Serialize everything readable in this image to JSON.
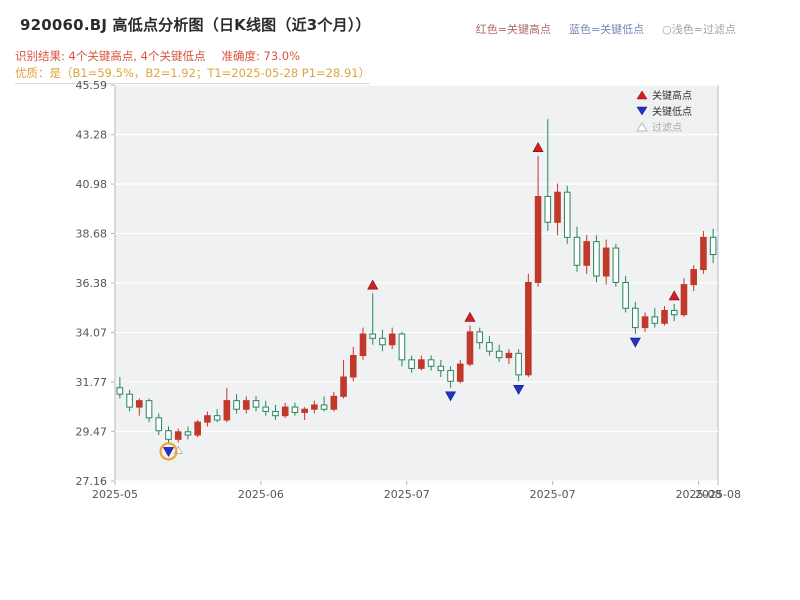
{
  "header": {
    "title": "920060.BJ 高低点分析图（日K线图（近3个月））",
    "legend_high": "红色=关键高点",
    "legend_low": "蓝色=关键低点",
    "legend_filter": "○浅色=过滤点",
    "result_text": "识别结果: 4个关键高点, 4个关键低点",
    "accuracy_text": "准确度: 73.0%",
    "quality_text": "优质：是（B1=59.5%，B2=1.92；T1=2025-05-28 P1=28.91）"
  },
  "chart_data": {
    "type": "candlestick",
    "title": "920060.BJ 高低点分析图（日K线图（近3个月））",
    "xlabel": "",
    "ylabel": "",
    "grid": true,
    "legend_position": "upper right",
    "ylim": [
      27.16,
      45.59
    ],
    "y_ticks": [
      "45.59",
      "43.28",
      "40.98",
      "38.68",
      "36.38",
      "34.07",
      "31.77",
      "29.47",
      "27.16"
    ],
    "x_ticks": [
      {
        "label": "2025-05",
        "bar": 0
      },
      {
        "label": "2025-06",
        "bar": 15
      },
      {
        "label": "2025-07",
        "bar": 30
      },
      {
        "label": "2025-07",
        "bar": 45
      },
      {
        "label": "2025-08",
        "bar": 60
      },
      {
        "label": "2025-08",
        "bar": 62
      }
    ],
    "legend": [
      {
        "label": "关键高点",
        "marker": "up-red"
      },
      {
        "label": "关键低点",
        "marker": "down-blue"
      },
      {
        "label": "过滤点",
        "marker": "up-hollow"
      }
    ],
    "candles_format": [
      "open",
      "high",
      "low",
      "close",
      "marker: H=key-high, L=key-low, F=filtered, ''=none"
    ],
    "candles": [
      [
        31.5,
        32.0,
        31.0,
        31.2,
        ""
      ],
      [
        31.2,
        31.4,
        30.4,
        30.6,
        ""
      ],
      [
        30.6,
        31.0,
        30.2,
        30.9,
        ""
      ],
      [
        30.9,
        31.0,
        29.9,
        30.1,
        ""
      ],
      [
        30.1,
        30.3,
        29.3,
        29.5,
        ""
      ],
      [
        29.5,
        29.7,
        28.91,
        29.1,
        "L"
      ],
      [
        29.1,
        29.6,
        28.95,
        29.45,
        "F"
      ],
      [
        29.45,
        29.7,
        29.1,
        29.3,
        ""
      ],
      [
        29.3,
        30.0,
        29.2,
        29.9,
        ""
      ],
      [
        29.9,
        30.4,
        29.7,
        30.2,
        ""
      ],
      [
        30.2,
        30.5,
        29.9,
        30.0,
        ""
      ],
      [
        30.0,
        31.5,
        29.9,
        30.9,
        ""
      ],
      [
        30.9,
        31.2,
        30.3,
        30.5,
        ""
      ],
      [
        30.5,
        31.1,
        30.3,
        30.9,
        ""
      ],
      [
        30.9,
        31.1,
        30.4,
        30.6,
        ""
      ],
      [
        30.6,
        30.9,
        30.2,
        30.4,
        ""
      ],
      [
        30.4,
        30.7,
        30.0,
        30.2,
        ""
      ],
      [
        30.2,
        30.8,
        30.1,
        30.6,
        ""
      ],
      [
        30.6,
        30.8,
        30.2,
        30.35,
        ""
      ],
      [
        30.35,
        30.6,
        30.0,
        30.5,
        ""
      ],
      [
        30.5,
        30.9,
        30.3,
        30.7,
        ""
      ],
      [
        30.7,
        31.1,
        30.4,
        30.5,
        ""
      ],
      [
        30.5,
        31.3,
        30.4,
        31.1,
        ""
      ],
      [
        31.1,
        32.8,
        31.0,
        32.0,
        ""
      ],
      [
        32.0,
        33.4,
        31.8,
        33.0,
        ""
      ],
      [
        33.0,
        34.3,
        32.8,
        34.0,
        ""
      ],
      [
        34.0,
        35.9,
        33.5,
        33.8,
        "H"
      ],
      [
        33.8,
        34.2,
        33.2,
        33.5,
        ""
      ],
      [
        33.5,
        34.3,
        33.3,
        34.0,
        ""
      ],
      [
        34.0,
        34.1,
        32.5,
        32.8,
        ""
      ],
      [
        32.8,
        33.0,
        32.2,
        32.4,
        ""
      ],
      [
        32.4,
        33.0,
        32.3,
        32.8,
        ""
      ],
      [
        32.8,
        33.0,
        32.3,
        32.5,
        ""
      ],
      [
        32.5,
        32.8,
        32.0,
        32.3,
        ""
      ],
      [
        32.3,
        32.5,
        31.5,
        31.8,
        "L"
      ],
      [
        31.8,
        32.8,
        31.7,
        32.6,
        ""
      ],
      [
        32.6,
        34.4,
        32.5,
        34.1,
        "H"
      ],
      [
        34.1,
        34.3,
        33.3,
        33.6,
        ""
      ],
      [
        33.6,
        33.9,
        33.0,
        33.2,
        ""
      ],
      [
        33.2,
        33.5,
        32.7,
        32.9,
        ""
      ],
      [
        32.9,
        33.3,
        32.6,
        33.1,
        ""
      ],
      [
        33.1,
        33.3,
        31.8,
        32.1,
        "L"
      ],
      [
        32.1,
        36.8,
        32.0,
        36.4,
        ""
      ],
      [
        36.4,
        42.3,
        36.2,
        40.4,
        "H"
      ],
      [
        40.4,
        44.0,
        38.8,
        39.2,
        ""
      ],
      [
        39.2,
        41.0,
        38.6,
        40.6,
        ""
      ],
      [
        40.6,
        40.9,
        38.2,
        38.5,
        ""
      ],
      [
        38.5,
        39.0,
        36.9,
        37.2,
        ""
      ],
      [
        37.2,
        38.6,
        36.8,
        38.3,
        ""
      ],
      [
        38.3,
        38.6,
        36.4,
        36.7,
        ""
      ],
      [
        36.7,
        38.4,
        36.3,
        38.0,
        ""
      ],
      [
        38.0,
        38.2,
        36.2,
        36.4,
        ""
      ],
      [
        36.4,
        36.7,
        35.0,
        35.2,
        ""
      ],
      [
        35.2,
        35.5,
        34.0,
        34.3,
        "L"
      ],
      [
        34.3,
        35.0,
        34.1,
        34.8,
        ""
      ],
      [
        34.8,
        35.2,
        34.3,
        34.5,
        ""
      ],
      [
        34.5,
        35.3,
        34.4,
        35.1,
        ""
      ],
      [
        35.1,
        35.4,
        34.6,
        34.9,
        "H"
      ],
      [
        34.9,
        36.6,
        34.8,
        36.3,
        ""
      ],
      [
        36.3,
        37.2,
        36.0,
        37.0,
        ""
      ],
      [
        37.0,
        38.8,
        36.8,
        38.5,
        ""
      ],
      [
        38.5,
        38.9,
        37.3,
        37.7,
        ""
      ]
    ],
    "highlight_bar": 5,
    "colors": {
      "up": "#c0392b",
      "down": "#27875a",
      "key_high": "#d21f1f",
      "key_low": "#2333c4",
      "filtered": "#bbbbbb",
      "highlight": "#f2a33c",
      "plot_bg": "#f0f1f3",
      "grid": "#ffffff",
      "axis": "#b5b9be",
      "tick_text": "#555555"
    }
  }
}
